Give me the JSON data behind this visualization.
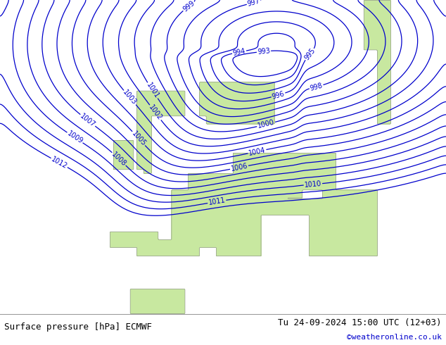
{
  "title_left": "Surface pressure [hPa] ECMWF",
  "title_right": "Tu 24-09-2024 15:00 UTC (12+03)",
  "credit": "©weatheronline.co.uk",
  "contour_color": "#0000cc",
  "land_color": "#c8e8a0",
  "sea_color": "#d0d0d0",
  "coast_color": "#888888",
  "footer_bg": "#e0e0e0",
  "figsize": [
    6.34,
    4.9
  ],
  "dpi": 100
}
